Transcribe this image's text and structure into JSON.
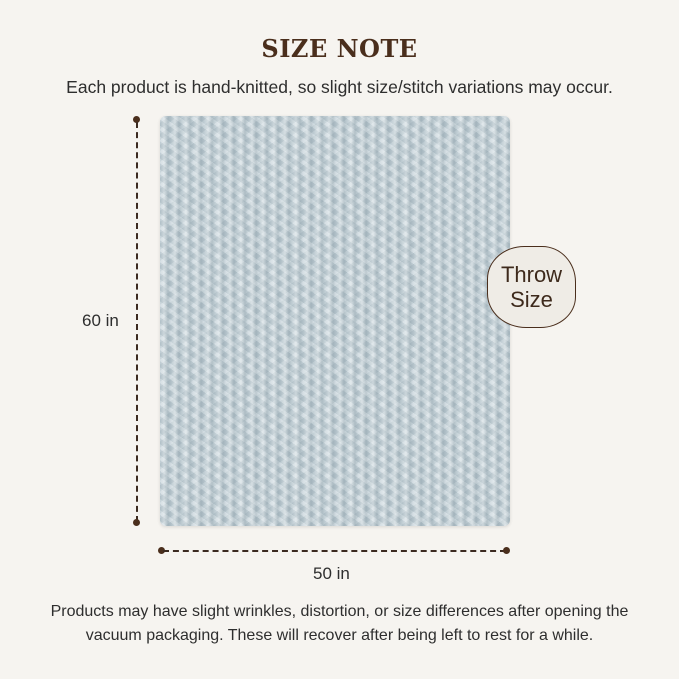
{
  "header": {
    "title": "SIZE NOTE",
    "subtitle": "Each product is hand-knitted, so slight size/stitch variations may occur."
  },
  "product": {
    "color": "#c3d1d8",
    "height_label": "60 in",
    "width_label": "50 in",
    "badge_line1": "Throw",
    "badge_line2": "Size"
  },
  "footer": {
    "line1": "Products may have slight wrinkles, distortion, or size differences after opening the",
    "line2": "vacuum packaging. These will recover after being left to rest for a while."
  },
  "colors": {
    "accent": "#4a2e1c",
    "background": "#f6f4f0"
  }
}
